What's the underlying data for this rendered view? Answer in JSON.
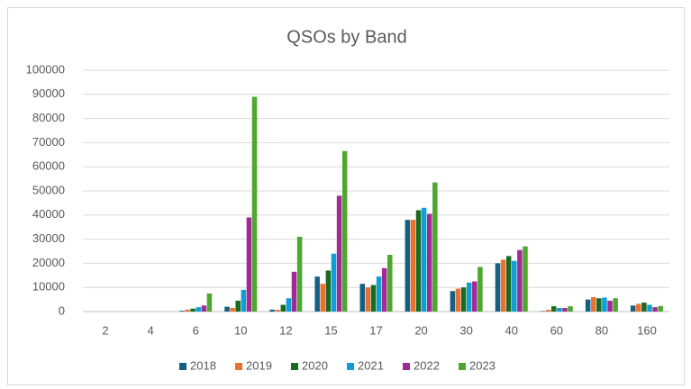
{
  "chart_data": {
    "type": "bar",
    "title": "QSOs by Band",
    "categories": [
      "2",
      "4",
      "6",
      "10",
      "12",
      "15",
      "17",
      "20",
      "30",
      "40",
      "60",
      "80",
      "160"
    ],
    "series": [
      {
        "name": "2018",
        "color": "#156082",
        "values": [
          0,
          0,
          300,
          2000,
          800,
          14500,
          11500,
          38000,
          8500,
          20000,
          200,
          5000,
          2500
        ]
      },
      {
        "name": "2019",
        "color": "#e97132",
        "values": [
          0,
          0,
          800,
          1500,
          700,
          11500,
          10000,
          38000,
          9500,
          21500,
          700,
          6000,
          3200
        ]
      },
      {
        "name": "2020",
        "color": "#196b24",
        "values": [
          0,
          0,
          1200,
          4500,
          2800,
          17000,
          11000,
          42000,
          10000,
          23000,
          2200,
          5500,
          3700
        ]
      },
      {
        "name": "2021",
        "color": "#0f9ed5",
        "values": [
          0,
          0,
          1800,
          9000,
          5500,
          24000,
          14500,
          43000,
          12000,
          21000,
          1500,
          5800,
          2800
        ]
      },
      {
        "name": "2022",
        "color": "#a02b93",
        "values": [
          0,
          0,
          2500,
          39000,
          16500,
          48000,
          18000,
          40500,
          12500,
          25500,
          1500,
          4500,
          1800
        ]
      },
      {
        "name": "2023",
        "color": "#4ea72e",
        "values": [
          0,
          0,
          7500,
          89000,
          31000,
          66500,
          23500,
          53500,
          18500,
          27000,
          2200,
          5500,
          2300
        ]
      }
    ],
    "ylim": [
      0,
      100000
    ],
    "yticks": [
      0,
      10000,
      20000,
      30000,
      40000,
      50000,
      60000,
      70000,
      80000,
      90000,
      100000
    ],
    "grid": true,
    "legend": "bottom"
  }
}
